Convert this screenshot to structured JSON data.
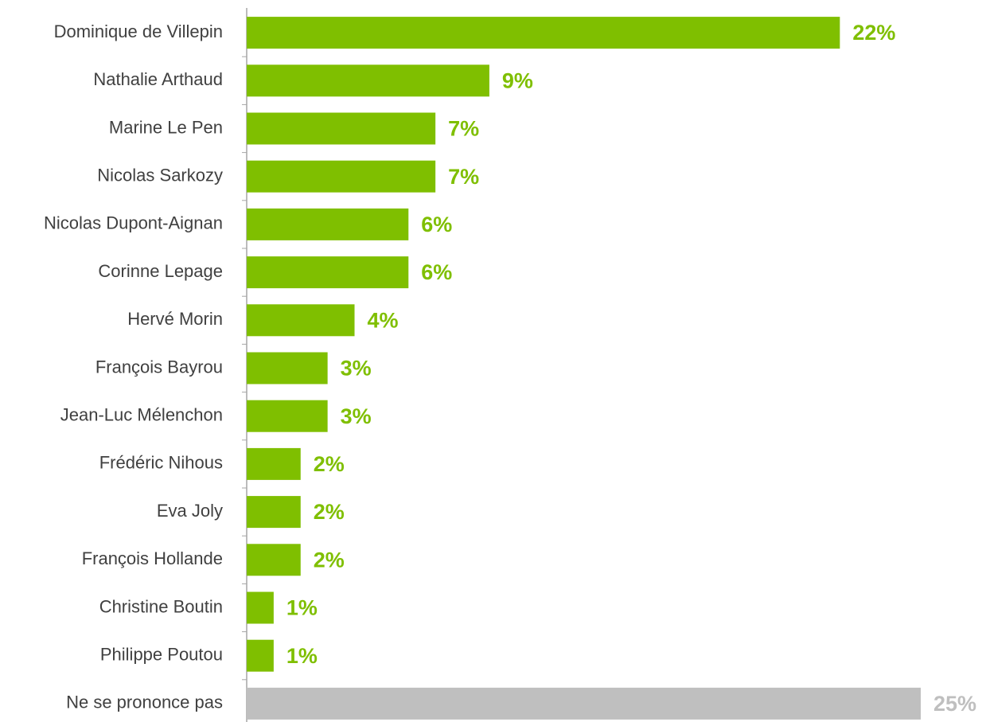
{
  "chart_data": {
    "type": "bar",
    "orientation": "horizontal",
    "categories": [
      "Dominique de Villepin",
      "Nathalie Arthaud",
      "Marine Le Pen",
      "Nicolas Sarkozy",
      "Nicolas Dupont-Aignan",
      "Corinne Lepage",
      "Hervé Morin",
      "François Bayrou",
      "Jean-Luc Mélenchon",
      "Frédéric Nihous",
      "Eva Joly",
      "François Hollande",
      "Christine Boutin",
      "Philippe Poutou",
      "Ne se prononce pas"
    ],
    "values": [
      22,
      9,
      7,
      7,
      6,
      6,
      4,
      3,
      3,
      2,
      2,
      2,
      1,
      1,
      25
    ],
    "value_labels": [
      "22%",
      "9%",
      "7%",
      "7%",
      "6%",
      "6%",
      "4%",
      "3%",
      "3%",
      "2%",
      "2%",
      "2%",
      "1%",
      "1%",
      "25%"
    ],
    "colors": [
      "#7fbf00",
      "#7fbf00",
      "#7fbf00",
      "#7fbf00",
      "#7fbf00",
      "#7fbf00",
      "#7fbf00",
      "#7fbf00",
      "#7fbf00",
      "#7fbf00",
      "#7fbf00",
      "#7fbf00",
      "#7fbf00",
      "#7fbf00",
      "#bfbfbf"
    ],
    "xlim": [
      0,
      25
    ]
  }
}
